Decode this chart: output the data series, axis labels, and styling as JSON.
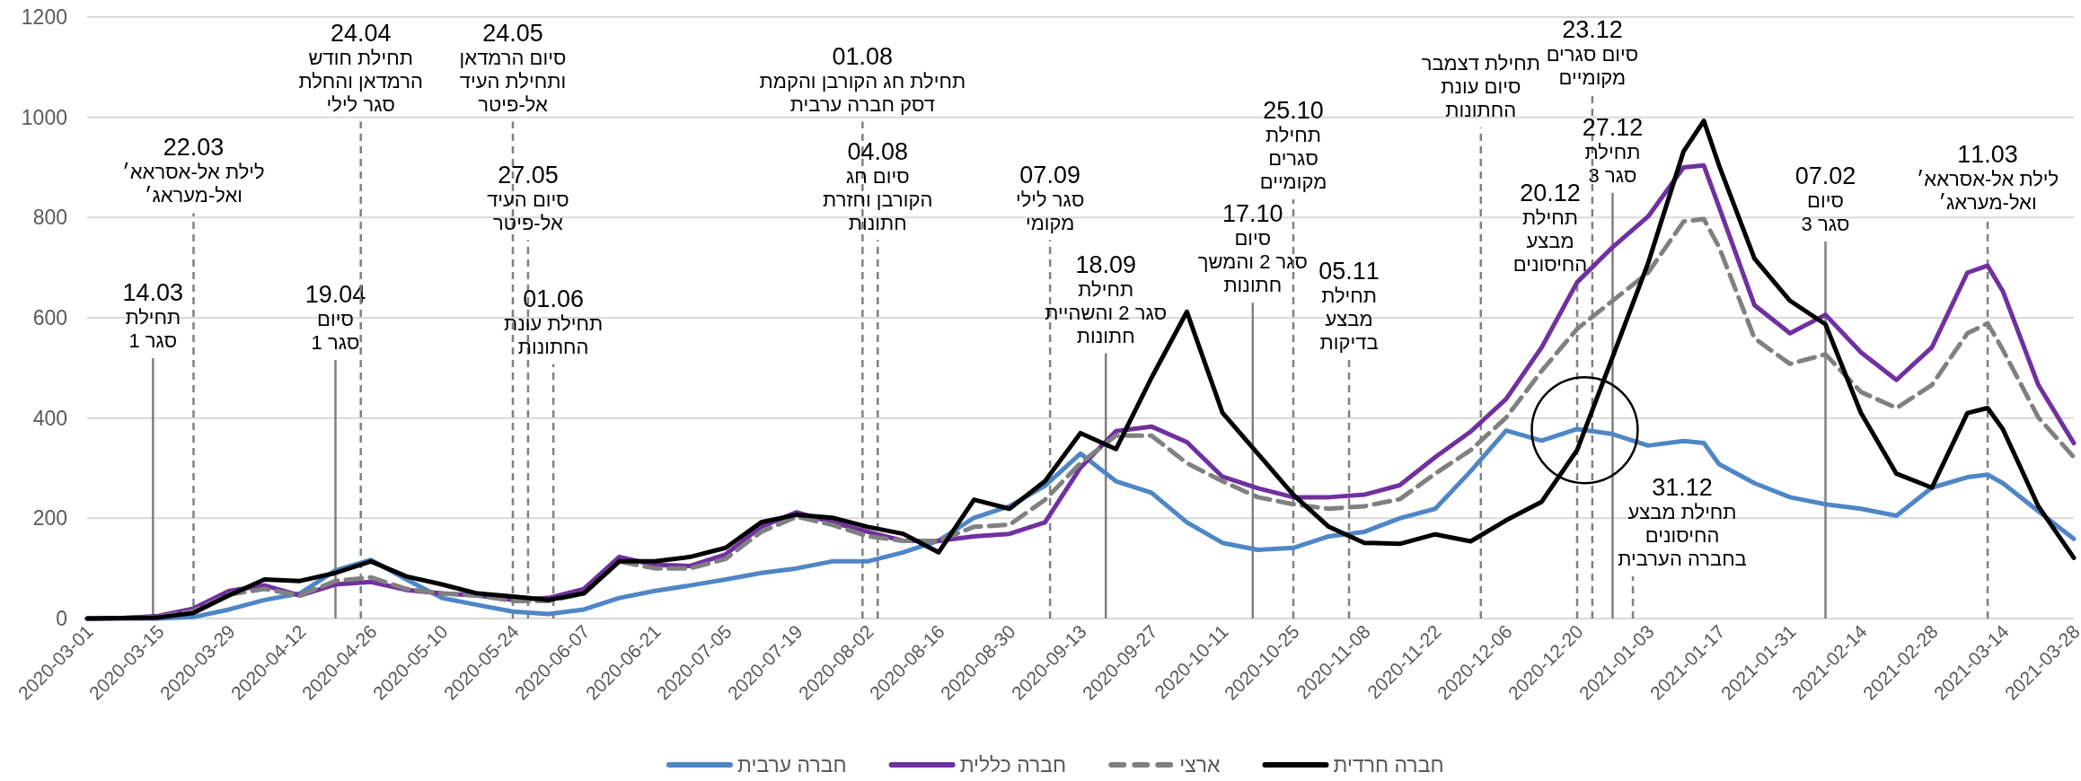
{
  "chart_data": {
    "type": "line",
    "xlim": [
      "2020-03-01",
      "2021-03-28"
    ],
    "xticks": [
      "2020-03-01",
      "2020-03-15",
      "2020-03-29",
      "2020-04-12",
      "2020-04-26",
      "2020-05-10",
      "2020-05-24",
      "2020-06-07",
      "2020-06-21",
      "2020-07-05",
      "2020-07-19",
      "2020-08-02",
      "2020-08-16",
      "2020-08-30",
      "2020-09-13",
      "2020-09-27",
      "2020-10-11",
      "2020-10-25",
      "2020-11-08",
      "2020-11-22",
      "2020-12-06",
      "2020-12-20",
      "2021-01-03",
      "2021-01-17",
      "2021-01-31",
      "2021-02-14",
      "2021-02-28",
      "2021-03-14",
      "2021-03-28"
    ],
    "ylim": [
      0,
      1200
    ],
    "yticks": [
      0,
      200,
      400,
      600,
      800,
      1000,
      1200
    ],
    "grid": "y",
    "legend": "bottom",
    "x": [
      "2020-03-01",
      "2020-03-08",
      "2020-03-15",
      "2020-03-22",
      "2020-03-29",
      "2020-04-05",
      "2020-04-12",
      "2020-04-19",
      "2020-04-26",
      "2020-05-03",
      "2020-05-10",
      "2020-05-17",
      "2020-05-24",
      "2020-05-31",
      "2020-06-07",
      "2020-06-14",
      "2020-06-21",
      "2020-06-28",
      "2020-07-05",
      "2020-07-12",
      "2020-07-19",
      "2020-07-26",
      "2020-08-02",
      "2020-08-09",
      "2020-08-16",
      "2020-08-23",
      "2020-08-30",
      "2020-09-06",
      "2020-09-13",
      "2020-09-20",
      "2020-09-27",
      "2020-10-04",
      "2020-10-11",
      "2020-10-18",
      "2020-10-25",
      "2020-11-01",
      "2020-11-08",
      "2020-11-15",
      "2020-11-22",
      "2020-11-29",
      "2020-12-06",
      "2020-12-13",
      "2020-12-20",
      "2020-12-27",
      "2021-01-03",
      "2021-01-10",
      "2021-01-14",
      "2021-01-17",
      "2021-01-24",
      "2021-01-31",
      "2021-02-07",
      "2021-02-14",
      "2021-02-21",
      "2021-02-28",
      "2021-03-07",
      "2021-03-11",
      "2021-03-14",
      "2021-03-21",
      "2021-03-28"
    ],
    "series": [
      {
        "name": "חברה ערבית",
        "color": "#4e86c6",
        "values": [
          0,
          0,
          0,
          3,
          18,
          37,
          50,
          96,
          117,
          78,
          41,
          27,
          14,
          9,
          18,
          41,
          55,
          66,
          78,
          91,
          100,
          114,
          114,
          132,
          155,
          201,
          224,
          265,
          329,
          274,
          251,
          192,
          151,
          137,
          141,
          164,
          173,
          200,
          219,
          294,
          375,
          355,
          378,
          368,
          345,
          354,
          350,
          308,
          270,
          242,
          228,
          219,
          205,
          261,
          282,
          287,
          270,
          214,
          159
        ]
      },
      {
        "name": "חברה כללית",
        "color": "#7030a0",
        "values": [
          0,
          1,
          5,
          20,
          55,
          66,
          46,
          68,
          73,
          57,
          50,
          46,
          37,
          41,
          59,
          123,
          107,
          105,
          128,
          183,
          212,
          192,
          173,
          155,
          155,
          164,
          169,
          192,
          301,
          374,
          383,
          352,
          283,
          260,
          242,
          242,
          247,
          266,
          322,
          373,
          438,
          541,
          671,
          741,
          802,
          900,
          904,
          821,
          625,
          569,
          606,
          531,
          476,
          541,
          690,
          704,
          653,
          466,
          350
        ]
      },
      {
        "name": "ארצי",
        "color": "#808080",
        "line_style": "dashed",
        "values": [
          0,
          1,
          3,
          15,
          48,
          59,
          46,
          75,
          82,
          59,
          50,
          46,
          35,
          35,
          50,
          114,
          100,
          100,
          119,
          173,
          203,
          187,
          164,
          155,
          155,
          183,
          187,
          237,
          310,
          365,
          365,
          310,
          274,
          242,
          228,
          219,
          224,
          238,
          289,
          336,
          401,
          494,
          578,
          634,
          690,
          792,
          797,
          741,
          559,
          508,
          527,
          452,
          420,
          466,
          569,
          589,
          536,
          401,
          322
        ]
      },
      {
        "name": "חברה חרדית",
        "color": "#000000",
        "values": [
          0,
          1,
          2,
          11,
          46,
          78,
          75,
          91,
          114,
          84,
          68,
          50,
          44,
          37,
          50,
          114,
          114,
          123,
          141,
          192,
          207,
          201,
          183,
          169,
          132,
          237,
          219,
          274,
          370,
          338,
          480,
          612,
          411,
          329,
          247,
          183,
          151,
          149,
          168,
          154,
          196,
          233,
          336,
          522,
          709,
          932,
          993,
          904,
          718,
          634,
          587,
          410,
          289,
          261,
          410,
          420,
          378,
          224,
          121
        ]
      }
    ],
    "ref_lines": [
      {
        "axis": "x",
        "value": "2020-03-14",
        "line_style": "solid",
        "color": "#808080",
        "label": "14.03\nתחילת\nסגר 1"
      },
      {
        "axis": "x",
        "value": "2020-03-22",
        "line_style": "dashed",
        "color": "#808080",
        "label": "22.03\nלילת אל-אסראא׳\nואל-מעראג׳"
      },
      {
        "axis": "x",
        "value": "2020-04-19",
        "line_style": "solid",
        "color": "#808080",
        "label": "19.04\nסיום\nסגר 1"
      },
      {
        "axis": "x",
        "value": "2020-04-24",
        "line_style": "dashed",
        "color": "#808080",
        "label": "24.04\nתחילת חודש\nהרמדאן והחלת\nסגר לילי"
      },
      {
        "axis": "x",
        "value": "2020-05-24",
        "line_style": "dashed",
        "color": "#808080",
        "label": "24.05\nסיום הרמדאן\nותחילת העיד\nאל-פיטר"
      },
      {
        "axis": "x",
        "value": "2020-05-27",
        "line_style": "dashed",
        "color": "#808080",
        "label": "27.05\nסיום העיד\nאל-פיטר"
      },
      {
        "axis": "x",
        "value": "2020-06-01",
        "line_style": "dashed",
        "color": "#808080",
        "label": "01.06\nתחילת עונת\nהחתונות"
      },
      {
        "axis": "x",
        "value": "2020-08-01",
        "line_style": "dashed",
        "color": "#808080",
        "label": "01.08\nתחילת חג הקורבן והקמת\nדסק חברה ערבית"
      },
      {
        "axis": "x",
        "value": "2020-08-04",
        "line_style": "dashed",
        "color": "#808080",
        "label": "04.08\nסיום חג\nהקורבן וחזרת\nחתונות"
      },
      {
        "axis": "x",
        "value": "2020-09-07",
        "line_style": "dashed",
        "color": "#808080",
        "label": "07.09\nסגר לילי\nמקומי"
      },
      {
        "axis": "x",
        "value": "2020-09-18",
        "line_style": "solid",
        "color": "#808080",
        "label": "18.09\nתחילת\nסגר 2 והשהיית\nחתונות"
      },
      {
        "axis": "x",
        "value": "2020-10-17",
        "line_style": "solid",
        "color": "#808080",
        "label": "17.10\nסיום\nסגר 2 והמשך\nחתונות"
      },
      {
        "axis": "x",
        "value": "2020-10-25",
        "line_style": "dashed",
        "color": "#808080",
        "label": "25.10\nתחילת\nסגרים\nמקומיים"
      },
      {
        "axis": "x",
        "value": "2020-11-05",
        "line_style": "dashed",
        "color": "#808080",
        "label": "05.11\nתחילת\nמבצע\nבדיקות"
      },
      {
        "axis": "x",
        "value": "2020-12-01",
        "line_style": "dashed",
        "color": "#808080",
        "label": "תחילת דצמבר\nסיום עונת\nהחתונות"
      },
      {
        "axis": "x",
        "value": "2020-12-20",
        "line_style": "dashed",
        "color": "#808080",
        "label": "20.12\nתחילת\nמבצע\nהחיסונים"
      },
      {
        "axis": "x",
        "value": "2020-12-23",
        "line_style": "dashed",
        "color": "#808080",
        "label": "23.12\nסיום סגרים\nמקומיים"
      },
      {
        "axis": "x",
        "value": "2020-12-27",
        "line_style": "solid",
        "color": "#808080",
        "label": "27.12\nתחילת\nסגר 3"
      },
      {
        "axis": "x",
        "value": "2020-12-31",
        "line_style": "dashed",
        "color": "#808080",
        "label": "31.12\nתחילת מבצע\nהחיסונים\nבחברה הערבית"
      },
      {
        "axis": "x",
        "value": "2021-02-07",
        "line_style": "solid",
        "color": "#808080",
        "label": "07.02\nסיום\nסגר 3"
      },
      {
        "axis": "x",
        "value": "2021-03-11",
        "line_style": "dashed",
        "color": "#808080",
        "label": "11.03\nלילת אל-אסראא׳\nואל-מעראג׳"
      }
    ]
  }
}
